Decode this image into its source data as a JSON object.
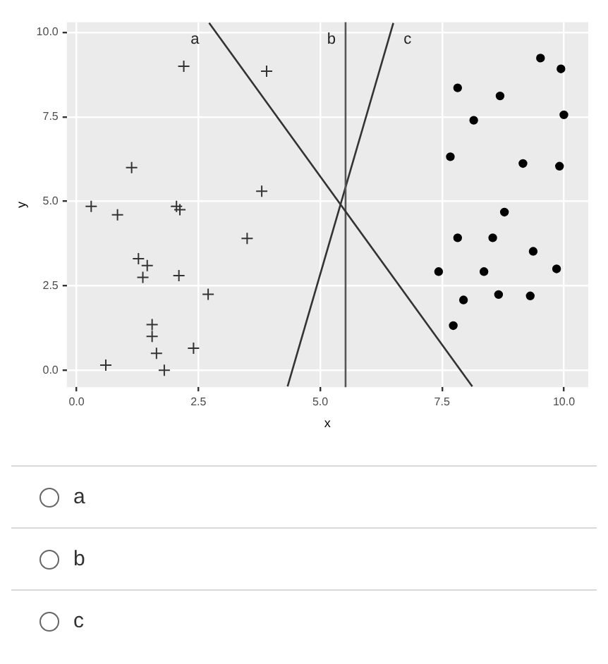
{
  "chart_data": {
    "type": "scatter",
    "xlabel": "x",
    "ylabel": "y",
    "xlim": [
      -0.2,
      10.5
    ],
    "ylim": [
      -0.5,
      10.3
    ],
    "xticks": [
      {
        "value": 0,
        "label": "0.0"
      },
      {
        "value": 2.5,
        "label": "2.5"
      },
      {
        "value": 5,
        "label": "5.0"
      },
      {
        "value": 7.5,
        "label": "7.5"
      },
      {
        "value": 10,
        "label": "10.0"
      }
    ],
    "yticks": [
      {
        "value": 0,
        "label": "0.0"
      },
      {
        "value": 2.5,
        "label": "2.5"
      },
      {
        "value": 5,
        "label": "5.0"
      },
      {
        "value": 7.5,
        "label": "7.5"
      },
      {
        "value": 10,
        "label": "10.0"
      }
    ],
    "grid": true,
    "series": [
      {
        "marker": "cross",
        "color": "#333333",
        "x": [
          0.3,
          0.84,
          1.13,
          2.2,
          2.05,
          2.12,
          3.8,
          3.9,
          3.5,
          1.27,
          1.45,
          1.36,
          2.1,
          2.7,
          1.55,
          1.55,
          1.64,
          2.4,
          1.8,
          0.6
        ],
        "values": [
          4.85,
          4.6,
          6.0,
          9.0,
          4.85,
          4.75,
          5.3,
          8.85,
          3.9,
          3.3,
          3.1,
          2.75,
          2.8,
          2.25,
          1.35,
          1.0,
          0.5,
          0.65,
          0.0,
          0.15
        ]
      },
      {
        "marker": "circle",
        "color": "#000000",
        "x": [
          9.52,
          9.94,
          7.82,
          8.69,
          10.0,
          8.15,
          7.67,
          9.16,
          9.91,
          8.78,
          7.82,
          8.54,
          9.37,
          7.43,
          8.36,
          9.85,
          7.94,
          8.66,
          9.31,
          7.73
        ],
        "values": [
          9.24,
          8.92,
          8.36,
          8.12,
          7.56,
          7.4,
          6.32,
          6.12,
          6.04,
          4.68,
          3.92,
          3.92,
          3.52,
          2.92,
          2.92,
          3.0,
          2.08,
          2.24,
          2.2,
          1.32
        ]
      },
      {
        "type": "line",
        "name": "a",
        "marker": "none",
        "color": "#333333",
        "x": [
          2.72,
          8.12
        ],
        "values": [
          10.28,
          -0.48
        ]
      },
      {
        "type": "line",
        "name": "b",
        "marker": "none",
        "color": "#555555",
        "x": [
          5.52,
          5.52
        ],
        "values": [
          10.3,
          -0.5
        ]
      },
      {
        "type": "line",
        "name": "c",
        "marker": "none",
        "color": "#333333",
        "x": [
          4.33,
          6.5
        ],
        "values": [
          -0.48,
          10.28
        ]
      }
    ],
    "annotations": [
      "a",
      "b",
      "c"
    ]
  }
}
